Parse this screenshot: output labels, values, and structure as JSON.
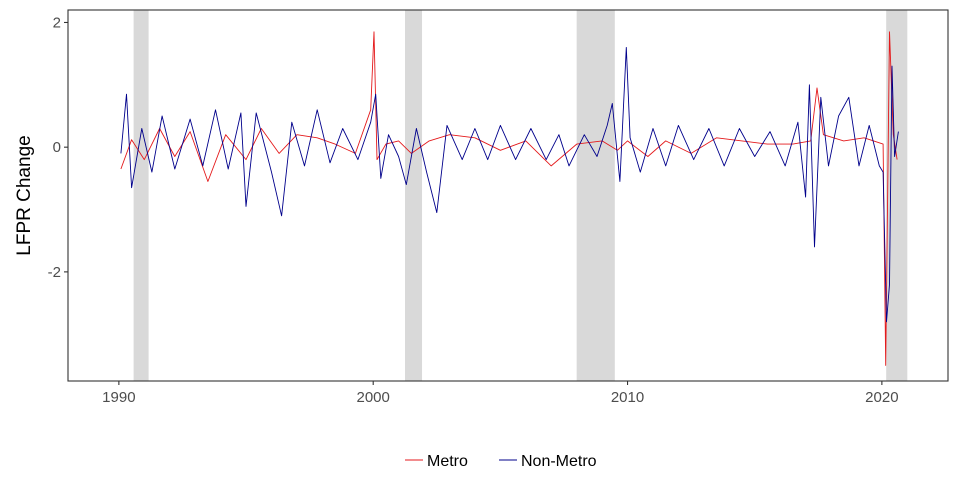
{
  "chart_data": {
    "type": "line",
    "title": "",
    "xlabel": "",
    "ylabel": "LFPR Change",
    "xlim": [
      1988.0,
      2022.6
    ],
    "ylim": [
      -3.75,
      2.2
    ],
    "x_ticks": [
      1990,
      2000,
      2010,
      2020
    ],
    "x_tick_labels": [
      "1990",
      "2000",
      "2010",
      "2020"
    ],
    "y_ticks": [
      -2,
      0,
      2
    ],
    "y_tick_labels": [
      "-2",
      "0",
      "2"
    ],
    "grid": false,
    "legend_position": "bottom",
    "recessions": [
      [
        1990.58,
        1991.17
      ],
      [
        2001.25,
        2001.92
      ],
      [
        2008.0,
        2009.5
      ],
      [
        2020.17,
        2021.0
      ]
    ],
    "recession_color": "#d9d9d9",
    "series": [
      {
        "name": "Metro",
        "color": "#e41a1c",
        "points": [
          [
            1990.08,
            -0.35
          ],
          [
            1990.5,
            0.12
          ],
          [
            1991.0,
            -0.2
          ],
          [
            1991.6,
            0.3
          ],
          [
            1992.2,
            -0.15
          ],
          [
            1992.8,
            0.25
          ],
          [
            1993.5,
            -0.55
          ],
          [
            1994.2,
            0.2
          ],
          [
            1995.0,
            -0.2
          ],
          [
            1995.6,
            0.3
          ],
          [
            1996.3,
            -0.1
          ],
          [
            1997.0,
            0.2
          ],
          [
            1997.8,
            0.15
          ],
          [
            1998.5,
            0.05
          ],
          [
            1999.3,
            -0.1
          ],
          [
            1999.9,
            0.6
          ],
          [
            2000.03,
            1.85
          ],
          [
            2000.15,
            -0.2
          ],
          [
            2000.5,
            0.05
          ],
          [
            2001.0,
            0.1
          ],
          [
            2001.5,
            -0.1
          ],
          [
            2002.2,
            0.1
          ],
          [
            2003.0,
            0.2
          ],
          [
            2004.0,
            0.15
          ],
          [
            2005.0,
            -0.05
          ],
          [
            2006.0,
            0.1
          ],
          [
            2007.0,
            -0.3
          ],
          [
            2008.0,
            0.05
          ],
          [
            2009.0,
            0.1
          ],
          [
            2009.6,
            -0.05
          ],
          [
            2010.0,
            0.1
          ],
          [
            2010.8,
            -0.15
          ],
          [
            2011.5,
            0.1
          ],
          [
            2012.5,
            -0.1
          ],
          [
            2013.5,
            0.15
          ],
          [
            2014.5,
            0.1
          ],
          [
            2015.5,
            0.05
          ],
          [
            2016.5,
            0.05
          ],
          [
            2017.2,
            0.1
          ],
          [
            2017.45,
            0.95
          ],
          [
            2017.7,
            0.2
          ],
          [
            2018.5,
            0.1
          ],
          [
            2019.3,
            0.15
          ],
          [
            2020.05,
            0.05
          ],
          [
            2020.15,
            -3.5
          ],
          [
            2020.3,
            1.85
          ],
          [
            2020.45,
            0.2
          ],
          [
            2020.6,
            -0.2
          ]
        ]
      },
      {
        "name": "Non-Metro",
        "color": "#00008b",
        "points": [
          [
            1990.08,
            -0.1
          ],
          [
            1990.3,
            0.85
          ],
          [
            1990.5,
            -0.65
          ],
          [
            1990.9,
            0.3
          ],
          [
            1991.3,
            -0.4
          ],
          [
            1991.7,
            0.5
          ],
          [
            1992.2,
            -0.35
          ],
          [
            1992.8,
            0.45
          ],
          [
            1993.3,
            -0.3
          ],
          [
            1993.8,
            0.6
          ],
          [
            1994.3,
            -0.35
          ],
          [
            1994.8,
            0.55
          ],
          [
            1995.0,
            -0.95
          ],
          [
            1995.4,
            0.55
          ],
          [
            1996.0,
            -0.4
          ],
          [
            1996.4,
            -1.1
          ],
          [
            1996.8,
            0.4
          ],
          [
            1997.3,
            -0.3
          ],
          [
            1997.8,
            0.6
          ],
          [
            1998.3,
            -0.25
          ],
          [
            1998.8,
            0.3
          ],
          [
            1999.4,
            -0.2
          ],
          [
            1999.9,
            0.4
          ],
          [
            2000.1,
            0.85
          ],
          [
            2000.3,
            -0.5
          ],
          [
            2000.6,
            0.2
          ],
          [
            2001.0,
            -0.15
          ],
          [
            2001.3,
            -0.6
          ],
          [
            2001.7,
            0.3
          ],
          [
            2002.1,
            -0.4
          ],
          [
            2002.5,
            -1.05
          ],
          [
            2002.9,
            0.35
          ],
          [
            2003.5,
            -0.2
          ],
          [
            2004.0,
            0.3
          ],
          [
            2004.5,
            -0.2
          ],
          [
            2005.0,
            0.35
          ],
          [
            2005.6,
            -0.2
          ],
          [
            2006.2,
            0.3
          ],
          [
            2006.8,
            -0.2
          ],
          [
            2007.3,
            0.2
          ],
          [
            2007.7,
            -0.3
          ],
          [
            2008.3,
            0.2
          ],
          [
            2008.8,
            -0.15
          ],
          [
            2009.2,
            0.35
          ],
          [
            2009.4,
            0.7
          ],
          [
            2009.7,
            -0.55
          ],
          [
            2009.95,
            1.6
          ],
          [
            2010.1,
            0.15
          ],
          [
            2010.5,
            -0.4
          ],
          [
            2011.0,
            0.3
          ],
          [
            2011.5,
            -0.3
          ],
          [
            2012.0,
            0.35
          ],
          [
            2012.6,
            -0.2
          ],
          [
            2013.2,
            0.3
          ],
          [
            2013.8,
            -0.3
          ],
          [
            2014.4,
            0.3
          ],
          [
            2015.0,
            -0.15
          ],
          [
            2015.6,
            0.25
          ],
          [
            2016.2,
            -0.3
          ],
          [
            2016.7,
            0.4
          ],
          [
            2017.0,
            -0.8
          ],
          [
            2017.15,
            1.0
          ],
          [
            2017.35,
            -1.6
          ],
          [
            2017.6,
            0.8
          ],
          [
            2017.9,
            -0.3
          ],
          [
            2018.3,
            0.5
          ],
          [
            2018.7,
            0.8
          ],
          [
            2019.1,
            -0.3
          ],
          [
            2019.5,
            0.35
          ],
          [
            2019.9,
            -0.3
          ],
          [
            2020.05,
            -0.4
          ],
          [
            2020.18,
            -2.8
          ],
          [
            2020.3,
            -2.2
          ],
          [
            2020.4,
            1.3
          ],
          [
            2020.5,
            -0.15
          ],
          [
            2020.65,
            0.25
          ]
        ]
      }
    ]
  }
}
